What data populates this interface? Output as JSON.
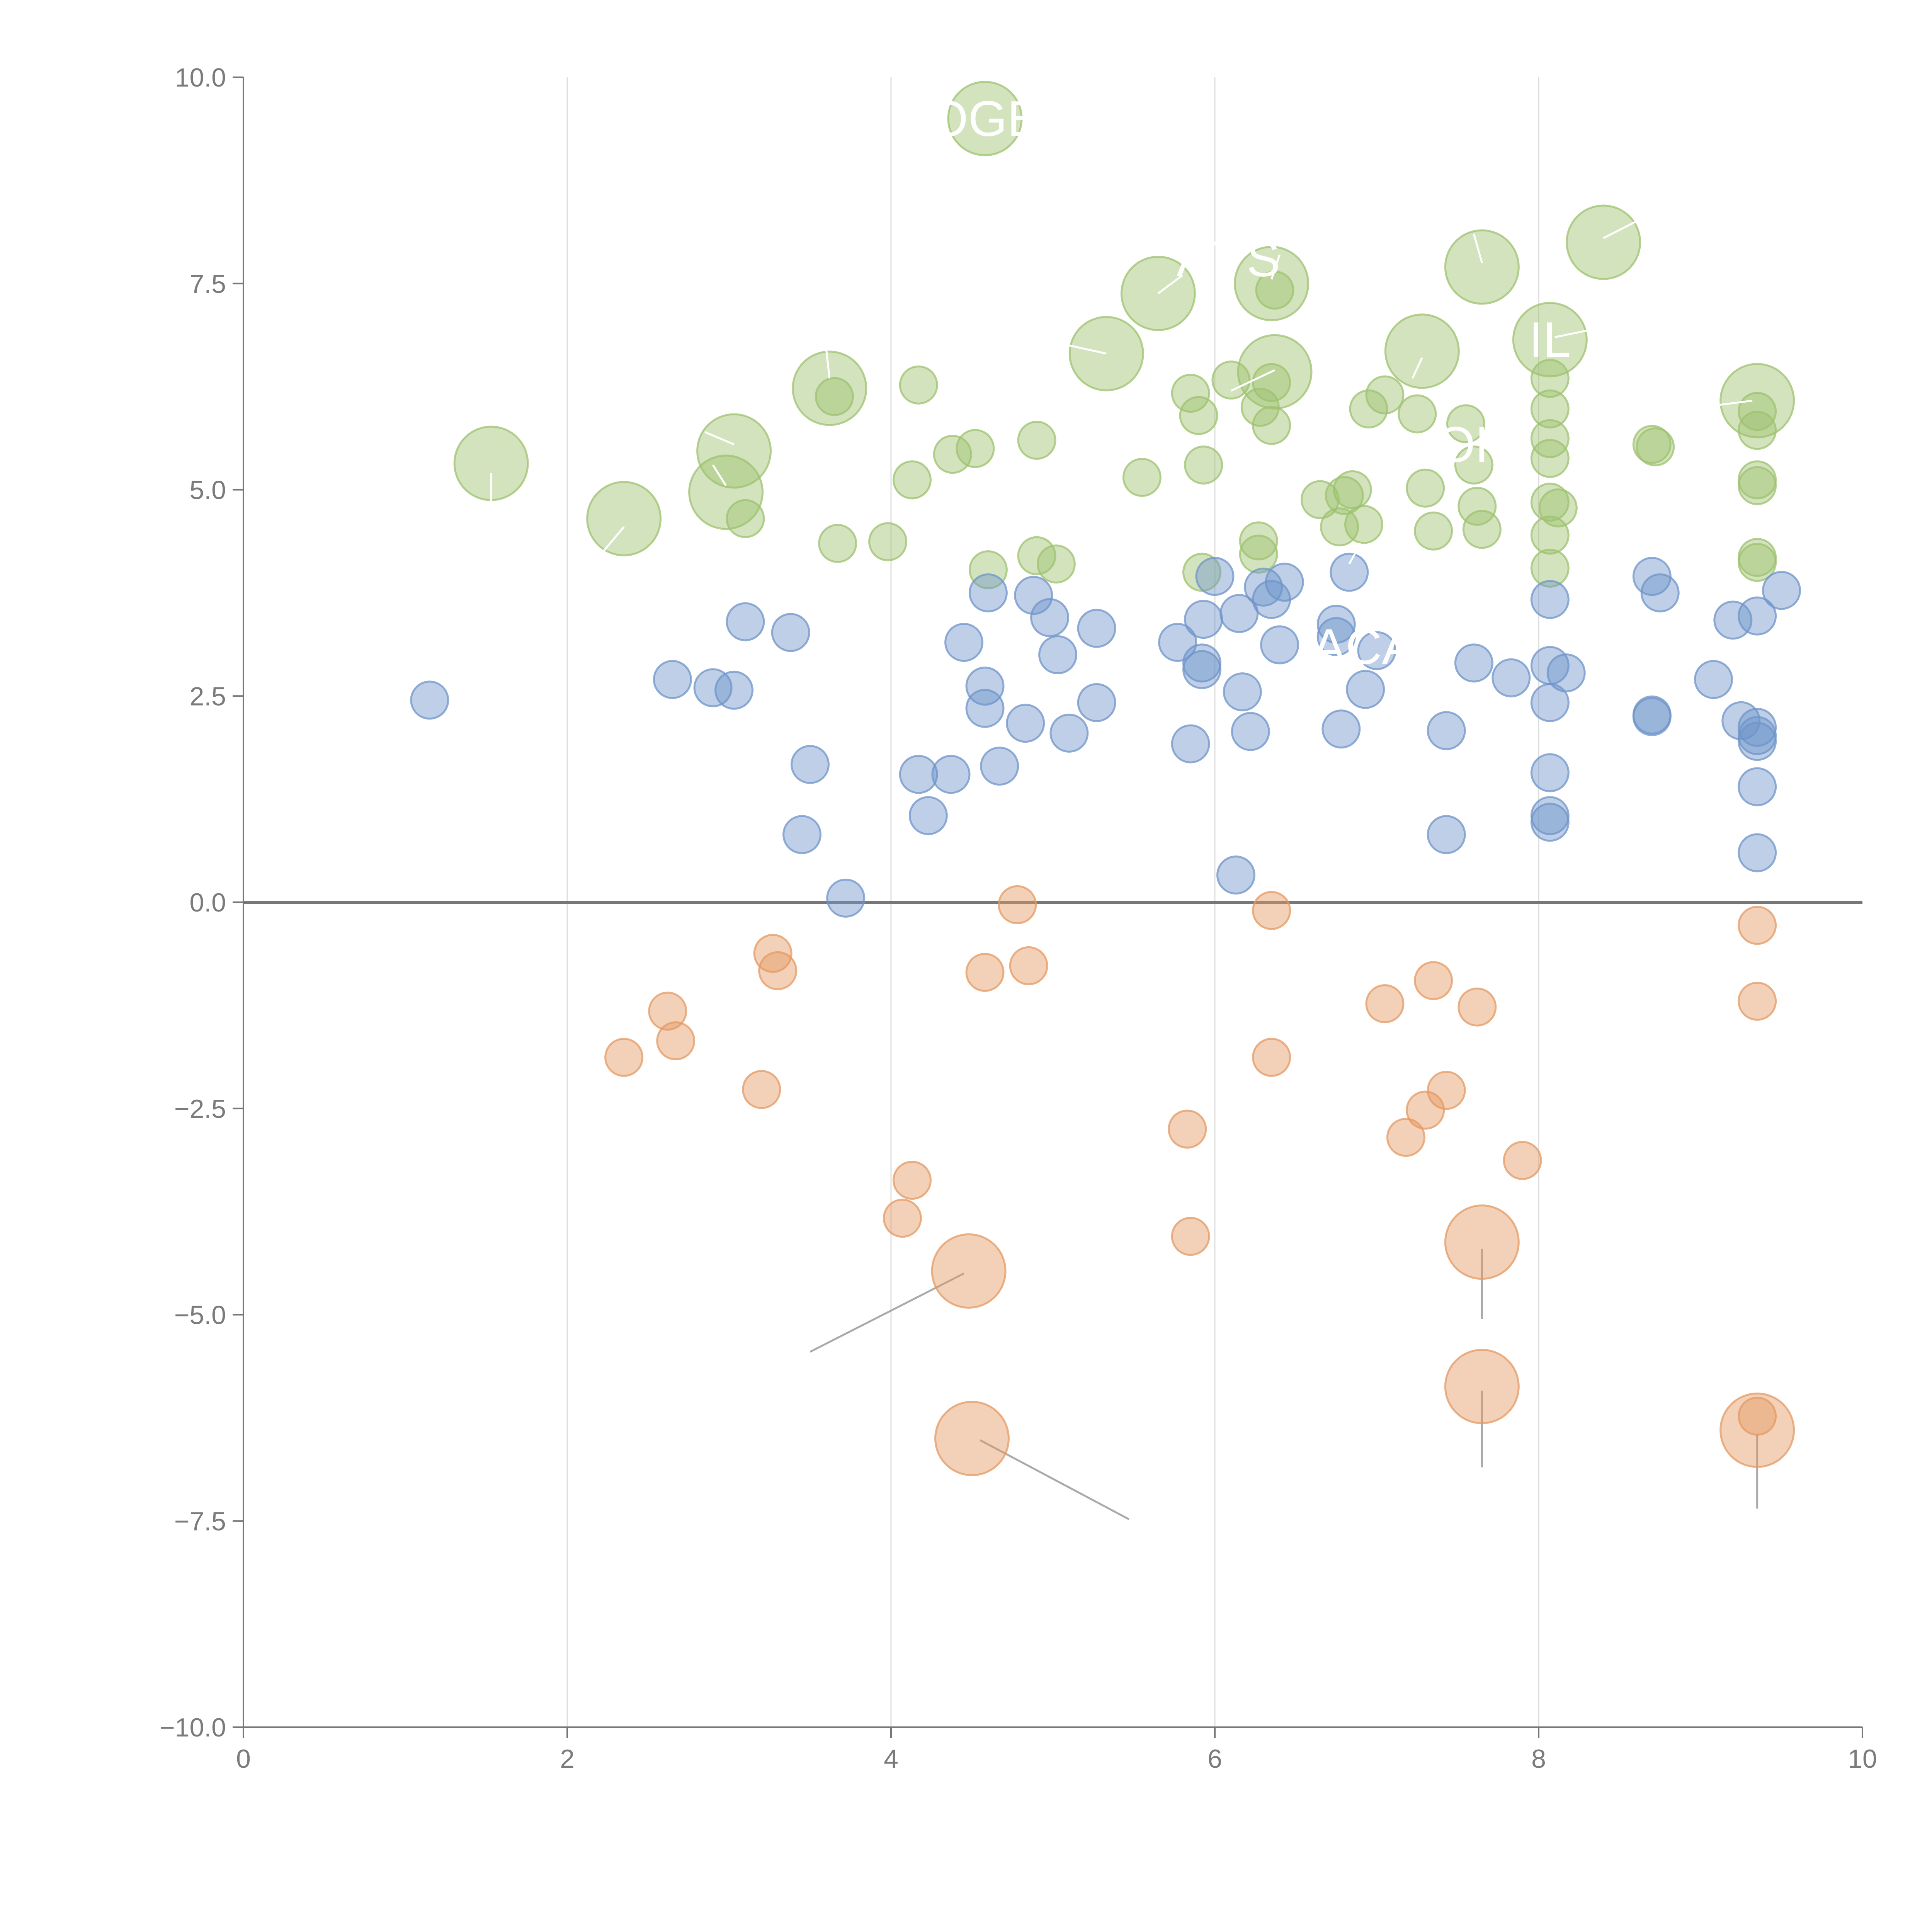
{
  "chart_data": {
    "type": "scatter",
    "title": "",
    "xlabel": "",
    "ylabel": "",
    "xlim": [
      0,
      10
    ],
    "ylim": [
      -10,
      10
    ],
    "x_ticks": [
      0,
      2,
      4,
      6,
      8,
      10
    ],
    "x_tick_labels": [
      "0",
      "2",
      "4",
      "6",
      "8",
      "10"
    ],
    "y_ticks": [
      10,
      7.5,
      5,
      2.5,
      0,
      -2.5,
      -5,
      -7.5,
      -10
    ],
    "y_tick_labels": [
      "10.0",
      "7.5",
      "5.0",
      "2.5",
      "0.0",
      "−2.5",
      "−5.0",
      "−7.5",
      "−10.0"
    ],
    "vertical_grid": true,
    "zero_line": true,
    "colors": {
      "green": "#9dc16f",
      "blue": "#6f94c9",
      "orange": "#e49a63",
      "axis": "#777777",
      "grid": "#dddddd",
      "zero_line": "#777777",
      "leader": "#aaaaaa"
    },
    "series": [
      {
        "name": "green",
        "points": [
          {
            "x": 4.58,
            "y": 9.5,
            "s": 3
          },
          {
            "x": 8.4,
            "y": 8.0,
            "s": 3
          },
          {
            "x": 7.65,
            "y": 7.7,
            "s": 3
          },
          {
            "x": 6.35,
            "y": 7.5,
            "s": 3
          },
          {
            "x": 5.65,
            "y": 7.38,
            "s": 3
          },
          {
            "x": 6.37,
            "y": 7.42,
            "s": 1
          },
          {
            "x": 8.07,
            "y": 6.82,
            "s": 3
          },
          {
            "x": 7.28,
            "y": 6.68,
            "s": 3
          },
          {
            "x": 5.33,
            "y": 6.65,
            "s": 3
          },
          {
            "x": 6.37,
            "y": 6.43,
            "s": 3
          },
          {
            "x": 3.62,
            "y": 6.23,
            "s": 3
          },
          {
            "x": 3.65,
            "y": 6.13,
            "s": 1
          },
          {
            "x": 4.17,
            "y": 6.27,
            "s": 1
          },
          {
            "x": 5.85,
            "y": 6.17,
            "s": 1
          },
          {
            "x": 6.1,
            "y": 6.33,
            "s": 1
          },
          {
            "x": 6.35,
            "y": 6.3,
            "s": 1
          },
          {
            "x": 8.07,
            "y": 6.35,
            "s": 1
          },
          {
            "x": 9.35,
            "y": 6.08,
            "s": 3
          },
          {
            "x": 7.05,
            "y": 6.15,
            "s": 1
          },
          {
            "x": 6.95,
            "y": 5.98,
            "s": 1
          },
          {
            "x": 7.25,
            "y": 5.92,
            "s": 1
          },
          {
            "x": 6.28,
            "y": 6.0,
            "s": 1
          },
          {
            "x": 5.9,
            "y": 5.9,
            "s": 1
          },
          {
            "x": 7.55,
            "y": 5.8,
            "s": 1
          },
          {
            "x": 6.35,
            "y": 5.78,
            "s": 1
          },
          {
            "x": 8.07,
            "y": 5.98,
            "s": 1
          },
          {
            "x": 9.35,
            "y": 5.95,
            "s": 1
          },
          {
            "x": 9.35,
            "y": 5.72,
            "s": 1
          },
          {
            "x": 8.07,
            "y": 5.62,
            "s": 1
          },
          {
            "x": 8.7,
            "y": 5.55,
            "s": 1
          },
          {
            "x": 8.72,
            "y": 5.52,
            "s": 1
          },
          {
            "x": 3.03,
            "y": 5.47,
            "s": 3
          },
          {
            "x": 4.52,
            "y": 5.5,
            "s": 1
          },
          {
            "x": 4.9,
            "y": 5.6,
            "s": 1
          },
          {
            "x": 8.07,
            "y": 5.38,
            "s": 1
          },
          {
            "x": 7.6,
            "y": 5.3,
            "s": 1
          },
          {
            "x": 5.93,
            "y": 5.3,
            "s": 1
          },
          {
            "x": 1.53,
            "y": 5.32,
            "s": 3
          },
          {
            "x": 4.38,
            "y": 5.43,
            "s": 1
          },
          {
            "x": 5.55,
            "y": 5.15,
            "s": 1
          },
          {
            "x": 4.13,
            "y": 5.12,
            "s": 1
          },
          {
            "x": 9.35,
            "y": 5.12,
            "s": 1
          },
          {
            "x": 9.35,
            "y": 5.05,
            "s": 1
          },
          {
            "x": 7.3,
            "y": 5.02,
            "s": 1
          },
          {
            "x": 6.85,
            "y": 5.0,
            "s": 1
          },
          {
            "x": 2.98,
            "y": 4.97,
            "s": 3
          },
          {
            "x": 6.65,
            "y": 4.88,
            "s": 1
          },
          {
            "x": 6.8,
            "y": 4.93,
            "s": 1
          },
          {
            "x": 8.07,
            "y": 4.85,
            "s": 1
          },
          {
            "x": 8.12,
            "y": 4.78,
            "s": 1
          },
          {
            "x": 7.62,
            "y": 4.8,
            "s": 1
          },
          {
            "x": 2.35,
            "y": 4.65,
            "s": 3
          },
          {
            "x": 3.1,
            "y": 4.65,
            "s": 1
          },
          {
            "x": 6.92,
            "y": 4.58,
            "s": 1
          },
          {
            "x": 6.77,
            "y": 4.55,
            "s": 1
          },
          {
            "x": 7.35,
            "y": 4.5,
            "s": 1
          },
          {
            "x": 7.65,
            "y": 4.52,
            "s": 1
          },
          {
            "x": 8.07,
            "y": 4.45,
            "s": 1
          },
          {
            "x": 6.27,
            "y": 4.38,
            "s": 1
          },
          {
            "x": 3.67,
            "y": 4.35,
            "s": 1
          },
          {
            "x": 3.98,
            "y": 4.37,
            "s": 1
          },
          {
            "x": 6.27,
            "y": 4.22,
            "s": 1
          },
          {
            "x": 4.9,
            "y": 4.2,
            "s": 1
          },
          {
            "x": 9.35,
            "y": 4.18,
            "s": 1
          },
          {
            "x": 9.35,
            "y": 4.12,
            "s": 1
          },
          {
            "x": 5.02,
            "y": 4.1,
            "s": 1
          },
          {
            "x": 8.07,
            "y": 4.05,
            "s": 1
          },
          {
            "x": 4.6,
            "y": 4.03,
            "s": 1
          },
          {
            "x": 5.92,
            "y": 4.0,
            "s": 1
          }
        ]
      },
      {
        "name": "blue",
        "points": [
          {
            "x": 6.0,
            "y": 3.95,
            "s": 1
          },
          {
            "x": 6.43,
            "y": 3.88,
            "s": 1
          },
          {
            "x": 6.83,
            "y": 4.0,
            "s": 1
          },
          {
            "x": 8.7,
            "y": 3.95,
            "s": 1
          },
          {
            "x": 6.3,
            "y": 3.82,
            "s": 1
          },
          {
            "x": 9.5,
            "y": 3.78,
            "s": 1
          },
          {
            "x": 4.6,
            "y": 3.75,
            "s": 1
          },
          {
            "x": 4.88,
            "y": 3.72,
            "s": 1
          },
          {
            "x": 8.75,
            "y": 3.75,
            "s": 1
          },
          {
            "x": 6.35,
            "y": 3.67,
            "s": 1
          },
          {
            "x": 8.07,
            "y": 3.67,
            "s": 1
          },
          {
            "x": 6.15,
            "y": 3.5,
            "s": 1
          },
          {
            "x": 4.98,
            "y": 3.45,
            "s": 1
          },
          {
            "x": 5.93,
            "y": 3.43,
            "s": 1
          },
          {
            "x": 9.35,
            "y": 3.47,
            "s": 1
          },
          {
            "x": 9.2,
            "y": 3.42,
            "s": 1
          },
          {
            "x": 3.1,
            "y": 3.4,
            "s": 1
          },
          {
            "x": 6.75,
            "y": 3.37,
            "s": 1
          },
          {
            "x": 5.27,
            "y": 3.32,
            "s": 1
          },
          {
            "x": 3.38,
            "y": 3.27,
            "s": 1
          },
          {
            "x": 6.75,
            "y": 3.22,
            "s": 1
          },
          {
            "x": 4.45,
            "y": 3.15,
            "s": 1
          },
          {
            "x": 5.77,
            "y": 3.15,
            "s": 1
          },
          {
            "x": 6.4,
            "y": 3.12,
            "s": 1
          },
          {
            "x": 7.0,
            "y": 3.05,
            "s": 1
          },
          {
            "x": 5.03,
            "y": 3.0,
            "s": 1
          },
          {
            "x": 7.6,
            "y": 2.9,
            "s": 1
          },
          {
            "x": 5.92,
            "y": 2.9,
            "s": 1
          },
          {
            "x": 8.07,
            "y": 2.87,
            "s": 1
          },
          {
            "x": 5.92,
            "y": 2.82,
            "s": 1
          },
          {
            "x": 8.17,
            "y": 2.78,
            "s": 1
          },
          {
            "x": 7.83,
            "y": 2.72,
            "s": 1
          },
          {
            "x": 2.65,
            "y": 2.7,
            "s": 1
          },
          {
            "x": 9.08,
            "y": 2.7,
            "s": 1
          },
          {
            "x": 4.58,
            "y": 2.62,
            "s": 1
          },
          {
            "x": 2.9,
            "y": 2.6,
            "s": 1
          },
          {
            "x": 6.93,
            "y": 2.58,
            "s": 1
          },
          {
            "x": 3.03,
            "y": 2.57,
            "s": 1
          },
          {
            "x": 6.17,
            "y": 2.55,
            "s": 1
          },
          {
            "x": 1.15,
            "y": 2.45,
            "s": 1
          },
          {
            "x": 5.27,
            "y": 2.42,
            "s": 1
          },
          {
            "x": 8.07,
            "y": 2.42,
            "s": 1
          },
          {
            "x": 4.58,
            "y": 2.35,
            "s": 1
          },
          {
            "x": 8.7,
            "y": 2.27,
            "s": 1
          },
          {
            "x": 8.7,
            "y": 2.25,
            "s": 1
          },
          {
            "x": 9.25,
            "y": 2.2,
            "s": 1
          },
          {
            "x": 4.83,
            "y": 2.17,
            "s": 1
          },
          {
            "x": 9.35,
            "y": 2.12,
            "s": 1
          },
          {
            "x": 6.78,
            "y": 2.1,
            "s": 1
          },
          {
            "x": 7.43,
            "y": 2.08,
            "s": 1
          },
          {
            "x": 6.22,
            "y": 2.07,
            "s": 1
          },
          {
            "x": 5.1,
            "y": 2.05,
            "s": 1
          },
          {
            "x": 9.35,
            "y": 2.02,
            "s": 1
          },
          {
            "x": 9.35,
            "y": 1.95,
            "s": 1
          },
          {
            "x": 5.85,
            "y": 1.92,
            "s": 1
          },
          {
            "x": 3.5,
            "y": 1.67,
            "s": 1
          },
          {
            "x": 4.67,
            "y": 1.65,
            "s": 1
          },
          {
            "x": 8.07,
            "y": 1.57,
            "s": 1
          },
          {
            "x": 4.17,
            "y": 1.55,
            "s": 1
          },
          {
            "x": 4.37,
            "y": 1.55,
            "s": 1
          },
          {
            "x": 9.35,
            "y": 1.4,
            "s": 1
          },
          {
            "x": 4.23,
            "y": 1.05,
            "s": 1
          },
          {
            "x": 8.07,
            "y": 1.05,
            "s": 1
          },
          {
            "x": 8.07,
            "y": 0.97,
            "s": 1
          },
          {
            "x": 3.45,
            "y": 0.82,
            "s": 1
          },
          {
            "x": 7.43,
            "y": 0.82,
            "s": 1
          },
          {
            "x": 9.35,
            "y": 0.6,
            "s": 1
          },
          {
            "x": 6.13,
            "y": 0.33,
            "s": 1
          },
          {
            "x": 3.72,
            "y": 0.05,
            "s": 1
          }
        ]
      },
      {
        "name": "orange",
        "points": [
          {
            "x": 4.78,
            "y": -0.03,
            "s": 1
          },
          {
            "x": 6.35,
            "y": -0.1,
            "s": 1
          },
          {
            "x": 9.35,
            "y": -0.28,
            "s": 1
          },
          {
            "x": 3.27,
            "y": -0.62,
            "s": 1
          },
          {
            "x": 4.85,
            "y": -0.77,
            "s": 1
          },
          {
            "x": 3.3,
            "y": -0.83,
            "s": 1
          },
          {
            "x": 4.58,
            "y": -0.85,
            "s": 1
          },
          {
            "x": 7.35,
            "y": -0.95,
            "s": 1
          },
          {
            "x": 7.05,
            "y": -1.23,
            "s": 1
          },
          {
            "x": 9.35,
            "y": -1.2,
            "s": 1
          },
          {
            "x": 7.62,
            "y": -1.27,
            "s": 1
          },
          {
            "x": 2.62,
            "y": -1.32,
            "s": 1
          },
          {
            "x": 2.67,
            "y": -1.68,
            "s": 1
          },
          {
            "x": 2.35,
            "y": -1.88,
            "s": 1
          },
          {
            "x": 6.35,
            "y": -1.88,
            "s": 1
          },
          {
            "x": 7.43,
            "y": -2.28,
            "s": 1
          },
          {
            "x": 3.2,
            "y": -2.27,
            "s": 1
          },
          {
            "x": 7.3,
            "y": -2.52,
            "s": 1
          },
          {
            "x": 5.83,
            "y": -2.75,
            "s": 1
          },
          {
            "x": 7.18,
            "y": -2.85,
            "s": 1
          },
          {
            "x": 7.9,
            "y": -3.13,
            "s": 1
          },
          {
            "x": 4.13,
            "y": -3.37,
            "s": 1
          },
          {
            "x": 4.07,
            "y": -3.83,
            "s": 1
          },
          {
            "x": 5.85,
            "y": -4.05,
            "s": 1
          },
          {
            "x": 7.65,
            "y": -4.12,
            "s": 3
          },
          {
            "x": 4.48,
            "y": -4.47,
            "s": 3
          },
          {
            "x": 7.65,
            "y": -5.87,
            "s": 3
          },
          {
            "x": 9.35,
            "y": -6.23,
            "s": 1
          },
          {
            "x": 9.35,
            "y": -6.4,
            "s": 3
          },
          {
            "x": 4.5,
            "y": -6.5,
            "s": 3
          }
        ]
      }
    ],
    "leader_lines": [
      {
        "x1": 4.45,
        "y1": -4.5,
        "x2": 3.5,
        "y2": -5.45
      },
      {
        "x1": 4.55,
        "y1": -6.52,
        "x2": 5.47,
        "y2": -7.48
      },
      {
        "x1": 7.65,
        "y1": -4.2,
        "x2": 7.65,
        "y2": -5.05
      },
      {
        "x1": 7.65,
        "y1": -5.92,
        "x2": 7.65,
        "y2": -6.85
      },
      {
        "x1": 9.35,
        "y1": -6.45,
        "x2": 9.35,
        "y2": -7.35
      }
    ],
    "white_leader_lines": [
      {
        "x1": 1.53,
        "y1": 5.2,
        "x2": 1.53,
        "y2": 4.8
      },
      {
        "x1": 2.35,
        "y1": 4.55,
        "x2": 2.2,
        "y2": 4.2
      },
      {
        "x1": 3.03,
        "y1": 5.55,
        "x2": 2.85,
        "y2": 5.7
      },
      {
        "x1": 2.98,
        "y1": 5.05,
        "x2": 2.9,
        "y2": 5.3
      },
      {
        "x1": 3.62,
        "y1": 6.35,
        "x2": 3.6,
        "y2": 6.7
      },
      {
        "x1": 5.33,
        "y1": 6.65,
        "x2": 5.1,
        "y2": 6.75
      },
      {
        "x1": 5.65,
        "y1": 7.38,
        "x2": 5.8,
        "y2": 7.6
      },
      {
        "x1": 6.35,
        "y1": 7.55,
        "x2": 6.4,
        "y2": 7.85
      },
      {
        "x1": 7.65,
        "y1": 7.75,
        "x2": 7.6,
        "y2": 8.1
      },
      {
        "x1": 8.4,
        "y1": 8.05,
        "x2": 8.6,
        "y2": 8.25
      },
      {
        "x1": 8.1,
        "y1": 6.85,
        "x2": 8.35,
        "y2": 6.95
      },
      {
        "x1": 9.32,
        "y1": 6.08,
        "x2": 9.0,
        "y2": 6.0
      },
      {
        "x1": 7.28,
        "y1": 6.6,
        "x2": 7.22,
        "y2": 6.35
      },
      {
        "x1": 6.37,
        "y1": 6.45,
        "x2": 6.1,
        "y2": 6.2
      },
      {
        "x1": 6.83,
        "y1": 4.1,
        "x2": 6.9,
        "y2": 4.35
      }
    ],
    "annotations": [
      {
        "text": "OGE",
        "x": 4.58,
        "y": 9.5
      },
      {
        "text": "AT",
        "x": 5.95,
        "y": 7.8
      },
      {
        "text": "S",
        "x": 6.3,
        "y": 7.8
      },
      {
        "text": "IL",
        "x": 8.07,
        "y": 6.82
      },
      {
        "text": "OH",
        "x": 7.6,
        "y": 5.55
      },
      {
        "text": "ACA",
        "x": 6.92,
        "y": 3.1
      }
    ]
  }
}
